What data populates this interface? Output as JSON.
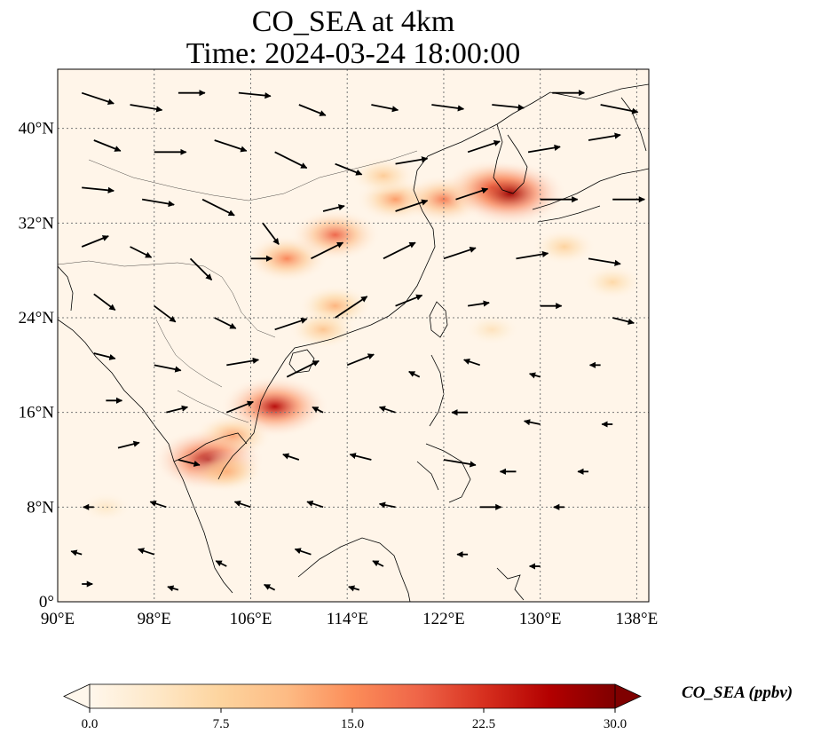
{
  "title": {
    "line1": "CO_SEA at 4km",
    "line2": "Time: 2024-03-24 18:00:00"
  },
  "map": {
    "extent": {
      "lon": [
        90,
        139
      ],
      "lat": [
        0,
        45
      ]
    },
    "lon_ticks": [
      {
        "value": 90,
        "label": "90°E"
      },
      {
        "value": 98,
        "label": "98°E"
      },
      {
        "value": 106,
        "label": "106°E"
      },
      {
        "value": 114,
        "label": "114°E"
      },
      {
        "value": 122,
        "label": "122°E"
      },
      {
        "value": 130,
        "label": "130°E"
      },
      {
        "value": 138,
        "label": "138°E"
      }
    ],
    "lat_ticks": [
      {
        "value": 0,
        "label": "0°"
      },
      {
        "value": 8,
        "label": "8°N"
      },
      {
        "value": 16,
        "label": "16°N"
      },
      {
        "value": 24,
        "label": "24°N"
      },
      {
        "value": 32,
        "label": "32°N"
      },
      {
        "value": 40,
        "label": "40°N"
      }
    ],
    "gridlines": true,
    "colormap": [
      "#fff7ec",
      "#fee8c8",
      "#fdd49e",
      "#fdbb84",
      "#fc8d59",
      "#ef6548",
      "#d7301f",
      "#b30000",
      "#7f0000"
    ],
    "plumes": [
      {
        "lon": 109,
        "lat": 29,
        "value": 16
      },
      {
        "lon": 113,
        "lat": 31,
        "value": 19
      },
      {
        "lon": 118,
        "lat": 34,
        "value": 14
      },
      {
        "lon": 122,
        "lat": 34,
        "value": 17
      },
      {
        "lon": 126,
        "lat": 35,
        "value": 22
      },
      {
        "lon": 127.5,
        "lat": 34.5,
        "value": 28
      },
      {
        "lon": 117,
        "lat": 36,
        "value": 9
      },
      {
        "lon": 113,
        "lat": 25,
        "value": 12
      },
      {
        "lon": 112,
        "lat": 23,
        "value": 10
      },
      {
        "lon": 108,
        "lat": 16.5,
        "value": 26
      },
      {
        "lon": 104.5,
        "lat": 14,
        "value": 14
      },
      {
        "lon": 102.5,
        "lat": 12,
        "value": 27
      },
      {
        "lon": 104,
        "lat": 11,
        "value": 12
      },
      {
        "lon": 132,
        "lat": 30,
        "value": 8
      },
      {
        "lon": 136,
        "lat": 27,
        "value": 7
      },
      {
        "lon": 126,
        "lat": 23,
        "value": 5
      },
      {
        "lon": 94,
        "lat": 8,
        "value": 4
      }
    ],
    "wind_vectors": [
      {
        "lon": 92,
        "lat": 43,
        "u": 3,
        "v": -1
      },
      {
        "lon": 96,
        "lat": 42,
        "u": 3,
        "v": -0.5
      },
      {
        "lon": 100,
        "lat": 43,
        "u": 2.5,
        "v": 0
      },
      {
        "lon": 105,
        "lat": 43,
        "u": 3,
        "v": -0.3
      },
      {
        "lon": 110,
        "lat": 42,
        "u": 2.5,
        "v": -1
      },
      {
        "lon": 116,
        "lat": 42,
        "u": 2.5,
        "v": -0.5
      },
      {
        "lon": 121,
        "lat": 42,
        "u": 3,
        "v": -0.4
      },
      {
        "lon": 126,
        "lat": 42,
        "u": 3,
        "v": -0.3
      },
      {
        "lon": 131,
        "lat": 43,
        "u": 3,
        "v": 0
      },
      {
        "lon": 135,
        "lat": 42,
        "u": 3.5,
        "v": -0.7
      },
      {
        "lon": 93,
        "lat": 39,
        "u": 2.5,
        "v": -1
      },
      {
        "lon": 98,
        "lat": 38,
        "u": 3,
        "v": 0
      },
      {
        "lon": 103,
        "lat": 39,
        "u": 3,
        "v": -1
      },
      {
        "lon": 108,
        "lat": 38,
        "u": 3,
        "v": -1.5
      },
      {
        "lon": 113,
        "lat": 37,
        "u": 2.5,
        "v": -1
      },
      {
        "lon": 118,
        "lat": 37,
        "u": 3,
        "v": 0.5
      },
      {
        "lon": 124,
        "lat": 38,
        "u": 3,
        "v": 1
      },
      {
        "lon": 129,
        "lat": 38,
        "u": 3,
        "v": 0.5
      },
      {
        "lon": 134,
        "lat": 39,
        "u": 3,
        "v": 0.5
      },
      {
        "lon": 92,
        "lat": 35,
        "u": 3,
        "v": -0.3
      },
      {
        "lon": 97,
        "lat": 34,
        "u": 3,
        "v": -0.5
      },
      {
        "lon": 102,
        "lat": 34,
        "u": 3,
        "v": -1.5
      },
      {
        "lon": 107,
        "lat": 32,
        "u": 1.5,
        "v": -2
      },
      {
        "lon": 112,
        "lat": 33,
        "u": 2,
        "v": 0.5
      },
      {
        "lon": 118,
        "lat": 33,
        "u": 3,
        "v": 1
      },
      {
        "lon": 123,
        "lat": 34,
        "u": 3,
        "v": 1
      },
      {
        "lon": 130,
        "lat": 34,
        "u": 3.5,
        "v": 0
      },
      {
        "lon": 136,
        "lat": 34,
        "u": 3,
        "v": 0
      },
      {
        "lon": 92,
        "lat": 30,
        "u": 2.5,
        "v": 1
      },
      {
        "lon": 96,
        "lat": 30,
        "u": 2,
        "v": -1
      },
      {
        "lon": 101,
        "lat": 29,
        "u": 2,
        "v": -2
      },
      {
        "lon": 106,
        "lat": 29,
        "u": 2,
        "v": 0
      },
      {
        "lon": 111,
        "lat": 29,
        "u": 3,
        "v": 1.5
      },
      {
        "lon": 117,
        "lat": 29,
        "u": 3,
        "v": 1.5
      },
      {
        "lon": 122,
        "lat": 29,
        "u": 3,
        "v": 1
      },
      {
        "lon": 128,
        "lat": 29,
        "u": 3,
        "v": 0.5
      },
      {
        "lon": 134,
        "lat": 29,
        "u": 3,
        "v": -0.5
      },
      {
        "lon": 93,
        "lat": 26,
        "u": 2,
        "v": -1.5
      },
      {
        "lon": 98,
        "lat": 25,
        "u": 2,
        "v": -1.5
      },
      {
        "lon": 103,
        "lat": 24,
        "u": 2,
        "v": -1
      },
      {
        "lon": 108,
        "lat": 23,
        "u": 3,
        "v": 1
      },
      {
        "lon": 113,
        "lat": 24,
        "u": 3,
        "v": 2
      },
      {
        "lon": 118,
        "lat": 25,
        "u": 2.5,
        "v": 1
      },
      {
        "lon": 124,
        "lat": 25,
        "u": 2,
        "v": 0.3
      },
      {
        "lon": 130,
        "lat": 25,
        "u": 2,
        "v": 0
      },
      {
        "lon": 136,
        "lat": 24,
        "u": 2,
        "v": -0.5
      },
      {
        "lon": 93,
        "lat": 21,
        "u": 2,
        "v": -0.5
      },
      {
        "lon": 98,
        "lat": 20,
        "u": 2.5,
        "v": -0.5
      },
      {
        "lon": 104,
        "lat": 20,
        "u": 3,
        "v": 0.5
      },
      {
        "lon": 109,
        "lat": 19,
        "u": 3,
        "v": 1.5
      },
      {
        "lon": 114,
        "lat": 20,
        "u": 2.5,
        "v": 1
      },
      {
        "lon": 120,
        "lat": 19,
        "u": -1,
        "v": 0.5
      },
      {
        "lon": 125,
        "lat": 20,
        "u": -1.5,
        "v": 0.5
      },
      {
        "lon": 130,
        "lat": 19,
        "u": -1,
        "v": 0.3
      },
      {
        "lon": 135,
        "lat": 20,
        "u": -1,
        "v": 0
      },
      {
        "lon": 94,
        "lat": 17,
        "u": 1.5,
        "v": 0
      },
      {
        "lon": 99,
        "lat": 16,
        "u": 2,
        "v": 0.5
      },
      {
        "lon": 104,
        "lat": 16,
        "u": 2.5,
        "v": 1
      },
      {
        "lon": 112,
        "lat": 16,
        "u": -1,
        "v": 0.5
      },
      {
        "lon": 118,
        "lat": 16,
        "u": -1.5,
        "v": 0.5
      },
      {
        "lon": 124,
        "lat": 16,
        "u": -1.5,
        "v": 0
      },
      {
        "lon": 130,
        "lat": 15,
        "u": -1.5,
        "v": 0.3
      },
      {
        "lon": 136,
        "lat": 15,
        "u": -1,
        "v": 0
      },
      {
        "lon": 95,
        "lat": 13,
        "u": 2,
        "v": 0.5
      },
      {
        "lon": 100,
        "lat": 12,
        "u": 2,
        "v": -0.5
      },
      {
        "lon": 110,
        "lat": 12,
        "u": -1.5,
        "v": 0.5
      },
      {
        "lon": 116,
        "lat": 12,
        "u": -2,
        "v": 0.5
      },
      {
        "lon": 122,
        "lat": 12,
        "u": 3,
        "v": -0.5
      },
      {
        "lon": 128,
        "lat": 11,
        "u": -1.5,
        "v": 0
      },
      {
        "lon": 134,
        "lat": 11,
        "u": -1,
        "v": 0
      },
      {
        "lon": 93,
        "lat": 8,
        "u": -1,
        "v": 0
      },
      {
        "lon": 99,
        "lat": 8,
        "u": -1.5,
        "v": 0.5
      },
      {
        "lon": 106,
        "lat": 8,
        "u": -1.5,
        "v": 0.5
      },
      {
        "lon": 112,
        "lat": 8,
        "u": -1.5,
        "v": 0.5
      },
      {
        "lon": 118,
        "lat": 8,
        "u": -1.5,
        "v": 0.3
      },
      {
        "lon": 125,
        "lat": 8,
        "u": 2,
        "v": 0
      },
      {
        "lon": 132,
        "lat": 8,
        "u": -1,
        "v": 0
      },
      {
        "lon": 92,
        "lat": 4,
        "u": -1,
        "v": 0.3
      },
      {
        "lon": 98,
        "lat": 4,
        "u": -1.5,
        "v": 0.5
      },
      {
        "lon": 104,
        "lat": 3,
        "u": -1,
        "v": 0.5
      },
      {
        "lon": 111,
        "lat": 4,
        "u": -1.5,
        "v": 0.5
      },
      {
        "lon": 117,
        "lat": 3,
        "u": -1,
        "v": 0.5
      },
      {
        "lon": 124,
        "lat": 4,
        "u": -1,
        "v": 0
      },
      {
        "lon": 130,
        "lat": 3,
        "u": -1,
        "v": 0
      },
      {
        "lon": 92,
        "lat": 1.5,
        "u": 1,
        "v": 0
      },
      {
        "lon": 100,
        "lat": 1,
        "u": -1,
        "v": 0.3
      },
      {
        "lon": 108,
        "lat": 1,
        "u": -1,
        "v": 0.5
      },
      {
        "lon": 115,
        "lat": 1,
        "u": -1,
        "v": 0.3
      }
    ]
  },
  "colorbar": {
    "min": 0,
    "max": 30,
    "ticks": [
      "0.0",
      "7.5",
      "15.0",
      "22.5",
      "30.0"
    ],
    "label": "CO_SEA (ppbv)",
    "extend": "both"
  }
}
